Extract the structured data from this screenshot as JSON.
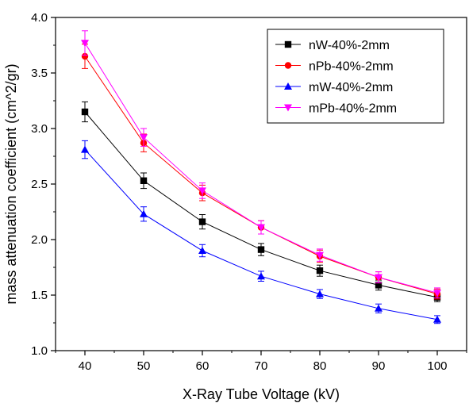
{
  "chart_data": {
    "type": "line",
    "title": "",
    "xlabel": "X-Ray Tube Voltage (kV)",
    "ylabel": "mass attenuation coefficient (cm^2/gr)",
    "x": [
      40,
      50,
      60,
      70,
      80,
      90,
      100
    ],
    "xlim": [
      35,
      105
    ],
    "ylim": [
      1.0,
      4.0
    ],
    "x_ticks": [
      "40",
      "50",
      "60",
      "70",
      "80",
      "90",
      "100"
    ],
    "y_ticks": [
      "1.0",
      "1.5",
      "2.0",
      "2.5",
      "3.0",
      "3.5",
      "4.0"
    ],
    "grid": false,
    "legend_position": "top-right",
    "series": [
      {
        "name": "nW-40%-2mm",
        "color": "#000000",
        "marker": "square",
        "values": [
          3.15,
          2.53,
          2.16,
          1.91,
          1.72,
          1.59,
          1.48
        ],
        "errors": [
          0.09,
          0.07,
          0.065,
          0.055,
          0.05,
          0.045,
          0.04
        ]
      },
      {
        "name": "nPb-40%-2mm",
        "color": "#ff0000",
        "marker": "circle",
        "values": [
          3.65,
          2.87,
          2.42,
          2.11,
          1.85,
          1.66,
          1.51
        ],
        "errors": [
          0.11,
          0.08,
          0.07,
          0.06,
          0.055,
          0.05,
          0.045
        ]
      },
      {
        "name": "mW-40%-2mm",
        "color": "#0000ff",
        "marker": "triangle-up",
        "values": [
          2.81,
          2.23,
          1.9,
          1.67,
          1.51,
          1.38,
          1.28
        ],
        "errors": [
          0.08,
          0.065,
          0.055,
          0.045,
          0.04,
          0.04,
          0.035
        ]
      },
      {
        "name": "mPb-40%-2mm",
        "color": "#ff00ff",
        "marker": "triangle-down",
        "values": [
          3.77,
          2.92,
          2.44,
          2.11,
          1.86,
          1.66,
          1.52
        ],
        "errors": [
          0.11,
          0.08,
          0.07,
          0.06,
          0.055,
          0.05,
          0.045
        ]
      }
    ]
  }
}
